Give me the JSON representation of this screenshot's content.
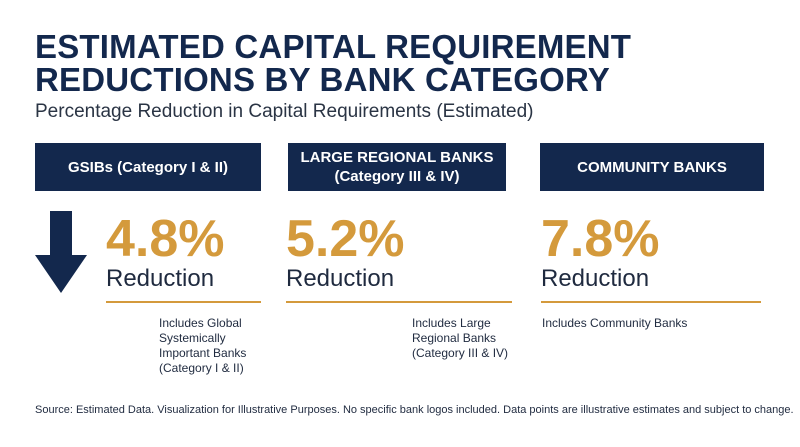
{
  "chart_data": {
    "type": "table",
    "title": "ESTIMATED CAPITAL REQUIREMENT REDUCTIONS BY BANK CATEGORY",
    "subtitle": "Percentage Reduction in Capital Requirements (Estimated)",
    "categories": [
      "GSIBs (Category I & II)",
      "LARGE REGIONAL BANKS (Category III & IV)",
      "COMMUNITY BANKS"
    ],
    "series": [
      {
        "values": [
          4.8,
          5.2,
          7.8
        ]
      }
    ],
    "items": [
      {
        "category": "GSIBs (Category I & II)",
        "value_label": "4.8%",
        "unit_label": "Reduction",
        "note": "Includes Global Systemically Important Banks (Category I & II)"
      },
      {
        "category": "LARGE REGIONAL BANKS (Category III & IV)",
        "value_label": "5.2%",
        "unit_label": "Reduction",
        "note": "Includes Large Regional Banks (Category III & IV)"
      },
      {
        "category": "COMMUNITY BANKS",
        "value_label": "7.8%",
        "unit_label": "Reduction",
        "note": "Includes Community Banks"
      }
    ],
    "source": "Source: Estimated Data. Visualization for Illustrative Purposes. No specific bank logos included. Data points are illustrative estimates and subject to change."
  },
  "icons": {
    "indicator": "down-arrow-icon"
  },
  "colors": {
    "navy": "#13284d",
    "gold": "#d49a3c",
    "text": "#1f2a3f"
  }
}
